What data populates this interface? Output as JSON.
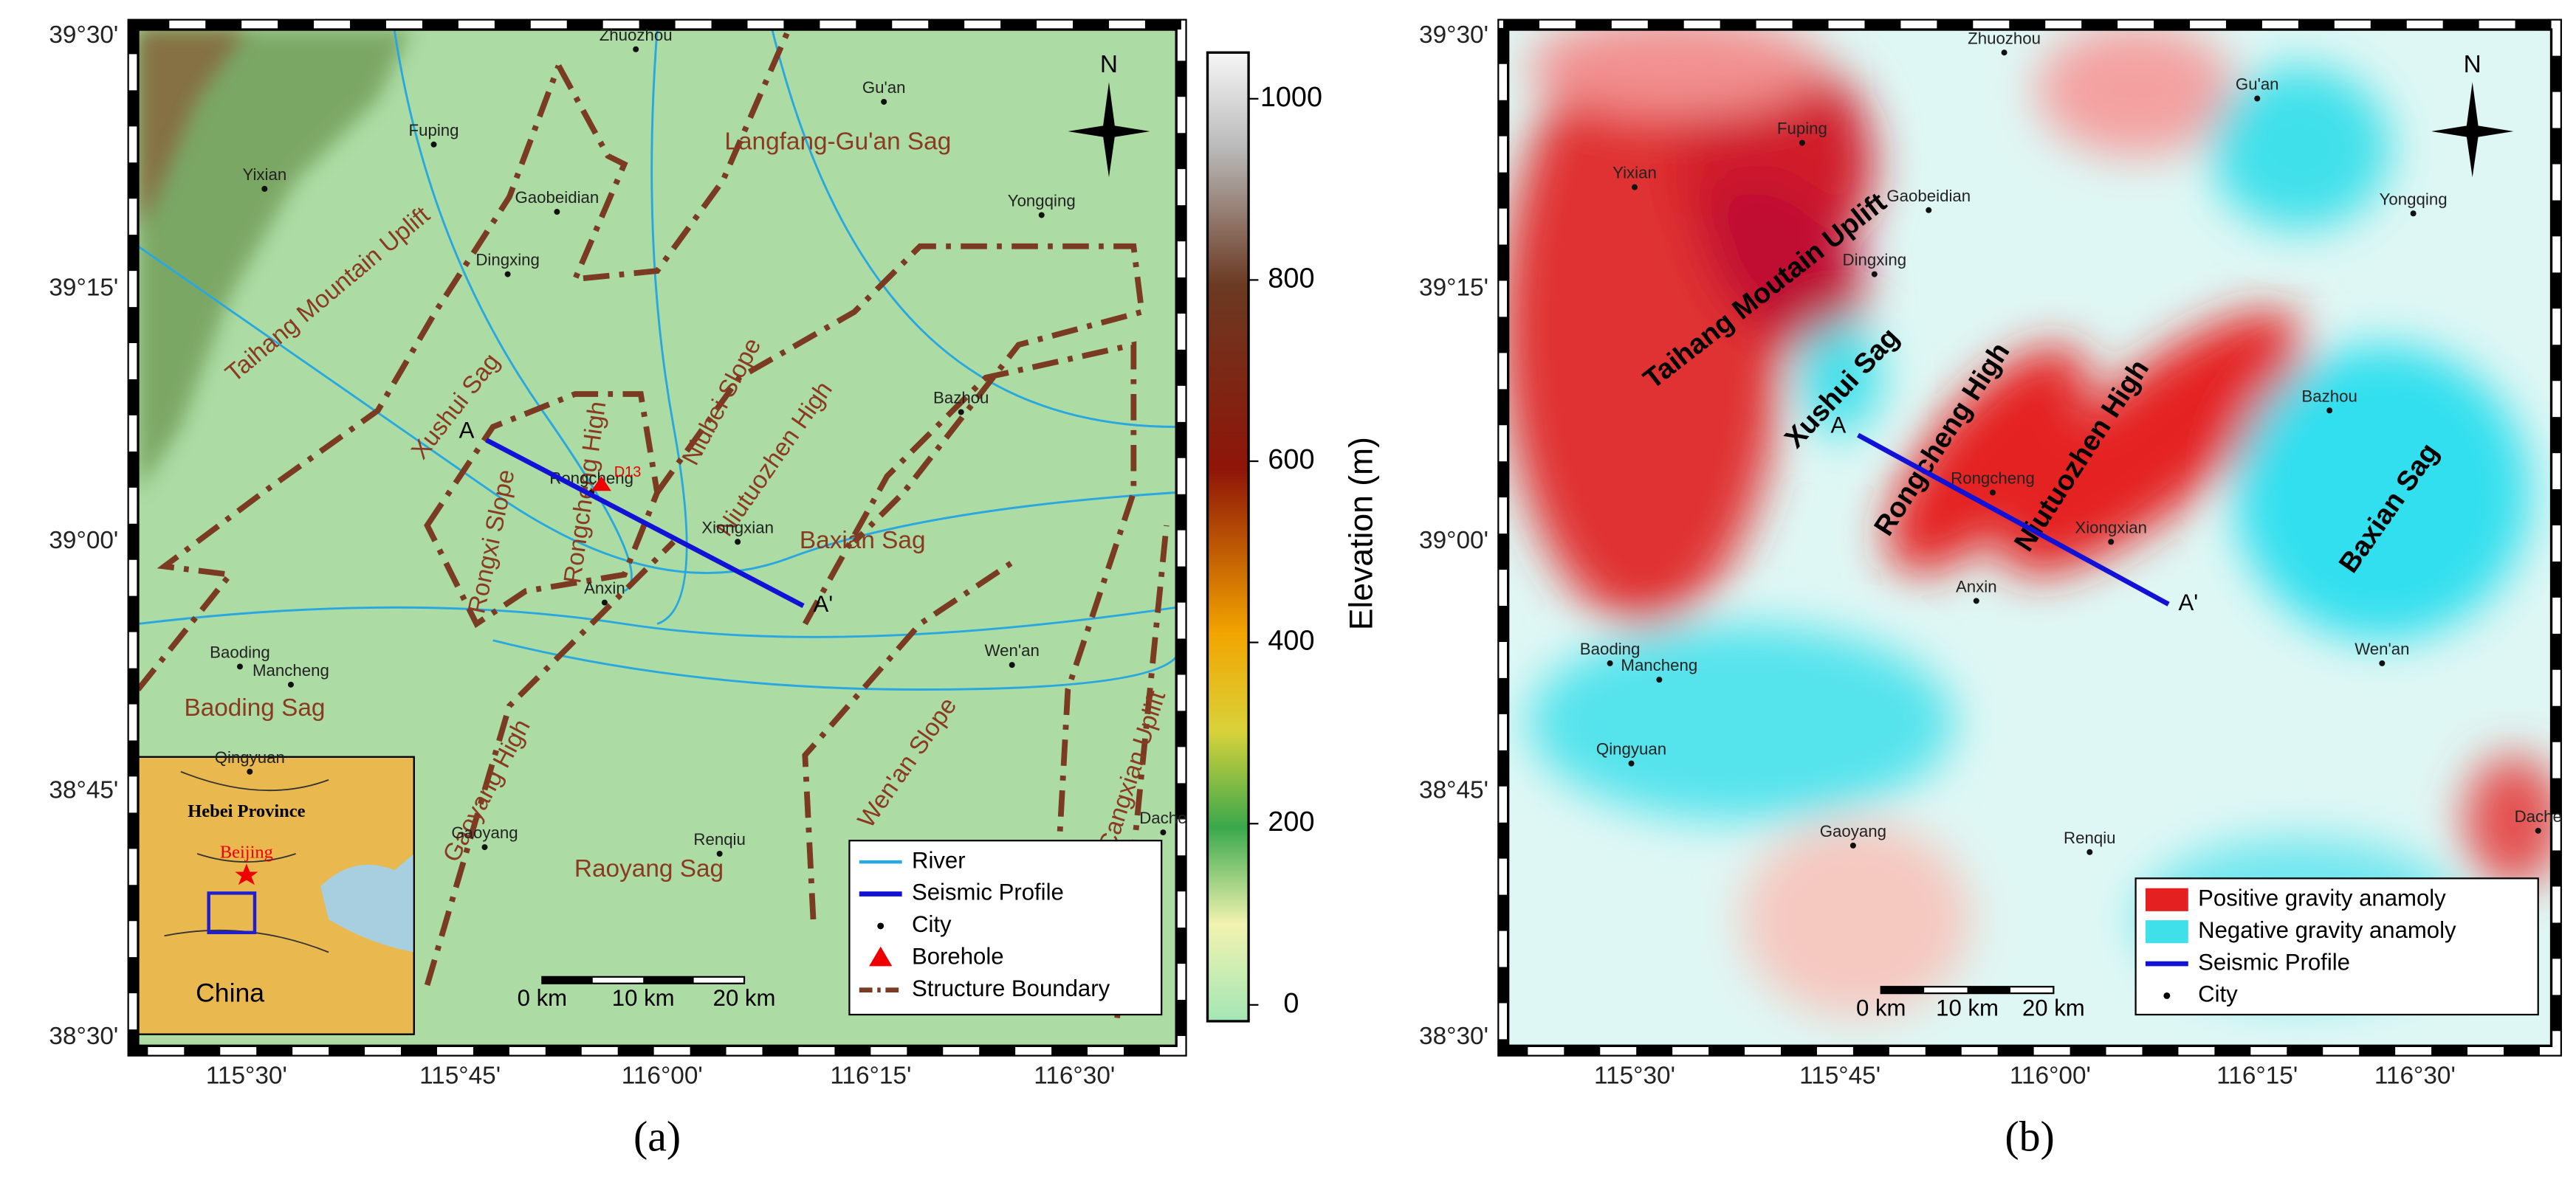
{
  "panels": [
    {
      "label": "(a)",
      "north": "N",
      "lat_labels": [
        "39°30'",
        "39°15'",
        "39°00'",
        "38°45'",
        "38°30'"
      ],
      "lon_labels": [
        "115°30'",
        "115°45'",
        "116°00'",
        "116°15'",
        "116°30'"
      ],
      "cities": [
        "Zhuozhou",
        "Gu'an",
        "Fuping",
        "Yixian",
        "Gaobeidian",
        "Yongqing",
        "Dingxing",
        "Bazhou",
        "Rongcheng",
        "Xiongxian",
        "Anxin",
        "Baoding",
        "Mancheng",
        "Wen'an",
        "Qingyuan",
        "Gaoyang",
        "Renqiu",
        "Dache"
      ],
      "regions": [
        "Langfang-Gu'an Sag",
        "Taihang Mountain Uplift",
        "Xushui Sag",
        "Rongxi Slope",
        "Rongcheng High",
        "Niubei Slope",
        "Niutuozhen High",
        "Baxian Sag",
        "Baoding Sag",
        "Gaoyang High",
        "Raoyang Sag",
        "Wen'an Slope",
        "Cangxian Uplift"
      ],
      "profile": [
        "A",
        "A'"
      ],
      "borehole": "D13",
      "legend": [
        "River",
        "Seismic Profile",
        "City",
        "Borehole",
        "Structure Boundary"
      ],
      "scale_bar": [
        "0 km",
        "10 km",
        "20 km"
      ],
      "inset": {
        "province": "Hebei Province",
        "capital": "Beijing",
        "country": "China"
      }
    },
    {
      "label": "(b)",
      "north": "N",
      "lat_labels": [
        "39°30'",
        "39°15'",
        "39°00'",
        "38°45'",
        "38°30'"
      ],
      "lon_labels": [
        "115°30'",
        "115°45'",
        "116°00'",
        "116°15'",
        "116°30'"
      ],
      "cities": [
        "Zhuozhou",
        "Gu'an",
        "Fuping",
        "Yixian",
        "Gaobeidian",
        "Yongqing",
        "Dingxing",
        "Bazhou",
        "Rongcheng",
        "Xiongxian",
        "Anxin",
        "Baoding",
        "Mancheng",
        "Wen'an",
        "Qingyuan",
        "Gaoyang",
        "Renqiu",
        "Dache"
      ],
      "regions": [
        "Taihang Moutain Uplift",
        "Xushui Sag",
        "Rongcheng High",
        "Niutuozhen High",
        "Baxian Sag"
      ],
      "profile": [
        "A",
        "A'"
      ],
      "legend": [
        "Positive gravity anamoly",
        "Negative gravity anamoly",
        "Seismic Profile",
        "City"
      ],
      "scale_bar": [
        "0 km",
        "10 km",
        "20 km"
      ]
    }
  ],
  "colorbar": {
    "title": "Elevation (m)",
    "ticks": [
      0,
      200,
      400,
      600,
      800,
      1000
    ],
    "lim": [
      -18,
      1051
    ]
  }
}
